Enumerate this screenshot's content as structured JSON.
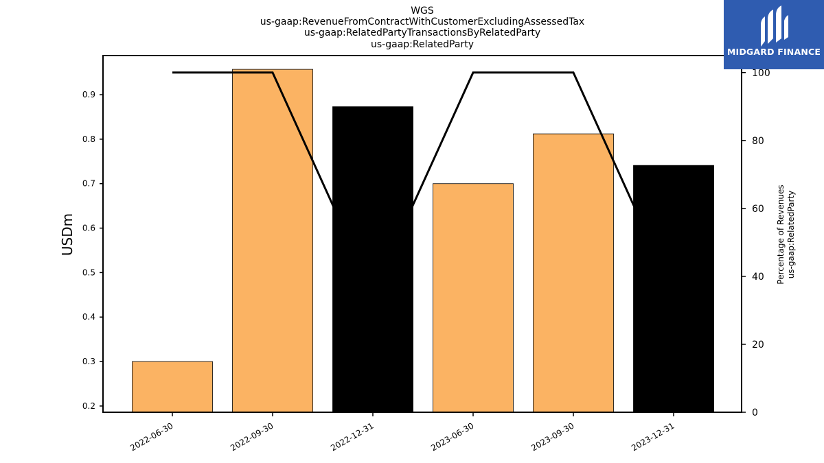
{
  "brand": {
    "name": "MIDGARD FINANCE",
    "icon": "midgard-logo-icon",
    "color": "#2f5cb0"
  },
  "chart_data": {
    "type": "bar",
    "title_lines": [
      "WGS",
      "us-gaap:RevenueFromContractWithCustomerExcludingAssessedTax",
      "us-gaap:RelatedPartyTransactionsByRelatedParty",
      "us-gaap:RelatedParty"
    ],
    "categories": [
      "2022-06-30",
      "2022-09-30",
      "2022-12-31",
      "2023-06-30",
      "2023-09-30",
      "2023-12-31"
    ],
    "bars": {
      "values": [
        0.3,
        0.957,
        0.873,
        0.7,
        0.812,
        0.741
      ],
      "colors": [
        "#fbb363",
        "#fbb363",
        "#000000",
        "#fbb363",
        "#fbb363",
        "#000000"
      ]
    },
    "line": {
      "values": [
        100,
        100,
        35,
        100,
        100,
        35
      ],
      "color": "#000000"
    },
    "ylabel": "USDm",
    "ylim": [
      0.186,
      0.988
    ],
    "yticks": [
      "0.2",
      "0.3",
      "0.4",
      "0.5",
      "0.6",
      "0.7",
      "0.8",
      "0.9"
    ],
    "y2label_lines": [
      "Percentage of Revenues",
      "us-gaap:RelatedParty"
    ],
    "y2lim": [
      0,
      105
    ],
    "y2ticks": [
      "0",
      "20",
      "40",
      "60",
      "80",
      "100"
    ],
    "grid": false
  }
}
